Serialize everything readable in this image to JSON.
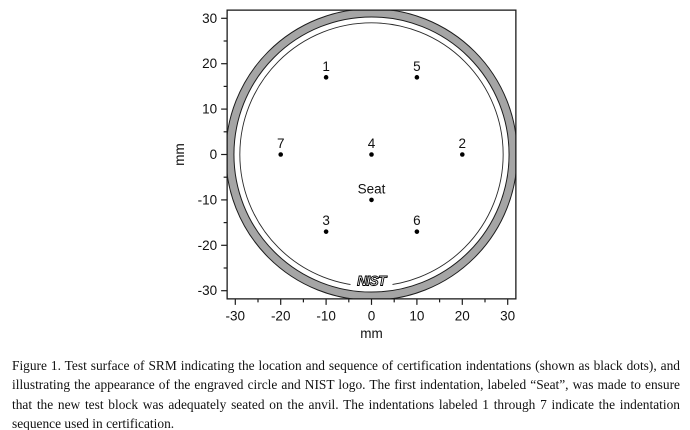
{
  "caption": {
    "text": "Figure 1.  Test surface of SRM indicating the location and sequence of certification indentations (shown as black dots), and illustrating the appearance of the engraved circle and NIST logo.  The first indentation, labeled “Seat”, was made to ensure that the new test block was adequately seated on the anvil.  The indentations labeled 1 through 7 indicate the indentation sequence used in certification."
  },
  "chart_data": {
    "type": "scatter",
    "title": "",
    "xlabel": "mm",
    "ylabel": "mm",
    "xlim": [
      -31.8,
      31.8
    ],
    "ylim": [
      -31.8,
      31.8
    ],
    "major_ticks": [
      -30,
      -20,
      -10,
      0,
      10,
      20,
      30
    ],
    "minor_tick_step": 5,
    "grid": false,
    "legend": null,
    "points": [
      {
        "label": "1",
        "x": -10,
        "y": 17
      },
      {
        "label": "5",
        "x": 10,
        "y": 17
      },
      {
        "label": "7",
        "x": -20,
        "y": 0
      },
      {
        "label": "4",
        "x": 0,
        "y": 0
      },
      {
        "label": "2",
        "x": 20,
        "y": 0
      },
      {
        "label": "Seat",
        "x": 0,
        "y": -10
      },
      {
        "label": "3",
        "x": -10,
        "y": -17
      },
      {
        "label": "6",
        "x": 10,
        "y": -17
      }
    ],
    "engraved_ring": {
      "outer_radius_mm": 32.1,
      "inner_radius_mm": 30.3,
      "fill": "#a5a5a5",
      "stroke": "#1c1c1c"
    },
    "engraved_circle_radius_mm": 29.0,
    "logo": {
      "text": "NIST",
      "x_mm": 0,
      "y_mm": -27.8
    },
    "colors": {
      "dot": "#000000",
      "axis": "#1c1c1c",
      "tick_label": "#111111",
      "ring_gray": "#a5a5a5",
      "background": "#ffffff"
    }
  }
}
